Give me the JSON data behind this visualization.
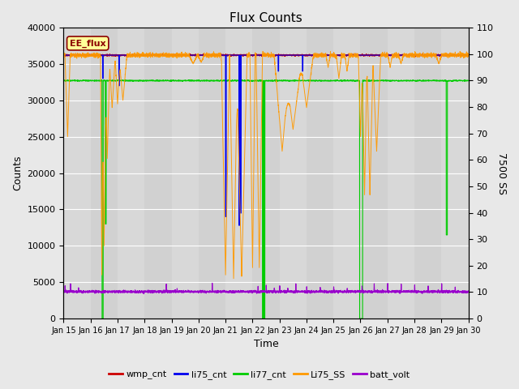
{
  "title": "Flux Counts",
  "xlabel": "Time",
  "ylabel_left": "Counts",
  "ylabel_right": "7500 SS",
  "annotation": "EE_flux",
  "ylim_left": [
    0,
    40000
  ],
  "ylim_right": [
    0,
    110
  ],
  "yticks_left": [
    0,
    5000,
    10000,
    15000,
    20000,
    25000,
    30000,
    35000,
    40000
  ],
  "yticks_right": [
    0,
    10,
    20,
    30,
    40,
    50,
    60,
    70,
    80,
    90,
    100,
    110
  ],
  "colors": {
    "wmp_cnt": "#cc0000",
    "li75_cnt": "#0000ee",
    "li77_cnt": "#00cc00",
    "Li75_SS": "#ff9900",
    "batt_volt": "#9900cc"
  },
  "fig_bg": "#e8e8e8",
  "plot_bg": "#d8d8d8",
  "wmp_cnt_level": 36200,
  "li75_cnt_level": 36200,
  "li77_cnt_level": 32700,
  "batt_volt_level": 3700
}
